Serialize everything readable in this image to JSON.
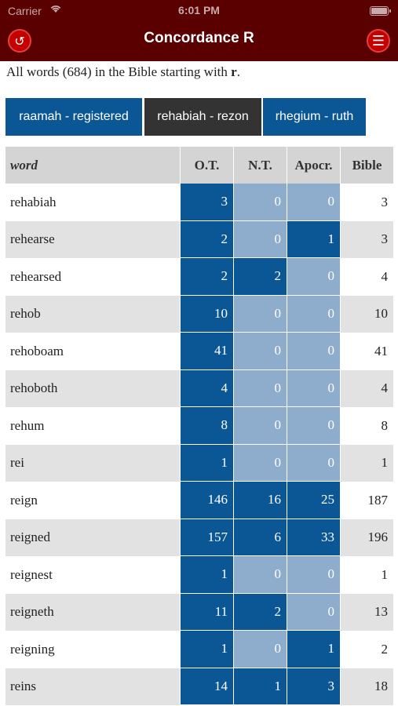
{
  "status_bar": {
    "carrier": "Carrier",
    "time": "6:01 PM"
  },
  "nav": {
    "title": "Concordance R",
    "back_icon": "back-arrow-icon",
    "menu_icon": "hamburger-menu-icon"
  },
  "intro": {
    "prefix": "All words (684) in the Bible starting with ",
    "letter": "r",
    "suffix": "."
  },
  "tabs": [
    {
      "label": "raamah - registered",
      "selected": false
    },
    {
      "label": "rehabiah - rezon",
      "selected": true
    },
    {
      "label": "rhegium - ruth",
      "selected": false
    }
  ],
  "table": {
    "headers": {
      "word": "word",
      "ot": "O.T.",
      "nt": "N.T.",
      "apocr": "Apocr.",
      "bible": "Bible"
    },
    "rows": [
      {
        "word": "rehabiah",
        "ot": "3",
        "nt": "0",
        "apocr": "0",
        "bible": "3"
      },
      {
        "word": "rehearse",
        "ot": "2",
        "nt": "0",
        "apocr": "1",
        "bible": "3"
      },
      {
        "word": "rehearsed",
        "ot": "2",
        "nt": "2",
        "apocr": "0",
        "bible": "4"
      },
      {
        "word": "rehob",
        "ot": "10",
        "nt": "0",
        "apocr": "0",
        "bible": "10"
      },
      {
        "word": "rehoboam",
        "ot": "41",
        "nt": "0",
        "apocr": "0",
        "bible": "41"
      },
      {
        "word": "rehoboth",
        "ot": "4",
        "nt": "0",
        "apocr": "0",
        "bible": "4"
      },
      {
        "word": "rehum",
        "ot": "8",
        "nt": "0",
        "apocr": "0",
        "bible": "8"
      },
      {
        "word": "rei",
        "ot": "1",
        "nt": "0",
        "apocr": "0",
        "bible": "1"
      },
      {
        "word": "reign",
        "ot": "146",
        "nt": "16",
        "apocr": "25",
        "bible": "187"
      },
      {
        "word": "reigned",
        "ot": "157",
        "nt": "6",
        "apocr": "33",
        "bible": "196"
      },
      {
        "word": "reignest",
        "ot": "1",
        "nt": "0",
        "apocr": "0",
        "bible": "1"
      },
      {
        "word": "reigneth",
        "ot": "11",
        "nt": "2",
        "apocr": "0",
        "bible": "13"
      },
      {
        "word": "reigning",
        "ot": "1",
        "nt": "0",
        "apocr": "1",
        "bible": "2"
      },
      {
        "word": "reins",
        "ot": "14",
        "nt": "1",
        "apocr": "3",
        "bible": "18"
      }
    ]
  },
  "colors": {
    "header_bg": "#5a0000",
    "tab_blue": "#0b5796",
    "tab_selected": "#333333",
    "count_on": "#0b5796",
    "count_zero": "#8eaccb"
  }
}
